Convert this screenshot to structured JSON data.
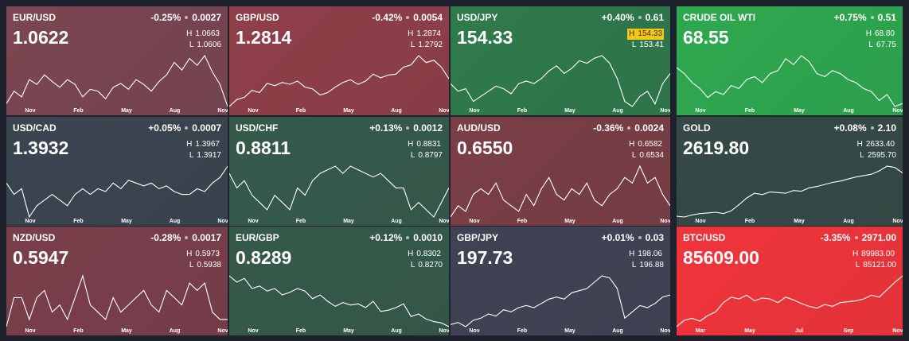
{
  "labels": {
    "high": "H",
    "low": "L"
  },
  "tiles": [
    {
      "symbol": "EUR/USD",
      "change_pct": "-0.25%",
      "change": "0.0027",
      "price": "1.0622",
      "high": "1.0663",
      "low": "1.0606",
      "high_highlight": false,
      "color": "#7a4651",
      "months": [
        "Nov",
        "Feb",
        "May",
        "Aug",
        "Nov"
      ],
      "values": [
        1.065,
        1.078,
        1.072,
        1.09,
        1.085,
        1.095,
        1.088,
        1.082,
        1.09,
        1.085,
        1.072,
        1.08,
        1.078,
        1.07,
        1.082,
        1.086,
        1.08,
        1.09,
        1.085,
        1.078,
        1.088,
        1.095,
        1.108,
        1.1,
        1.112,
        1.105,
        1.115,
        1.098,
        1.085,
        1.062
      ]
    },
    {
      "symbol": "GBP/USD",
      "change_pct": "-0.42%",
      "change": "0.0054",
      "price": "1.2814",
      "high": "1.2874",
      "low": "1.2792",
      "high_highlight": false,
      "color": "#8f3f48",
      "months": [
        "Nov",
        "Feb",
        "May",
        "Aug",
        "Nov"
      ],
      "values": [
        1.22,
        1.235,
        1.24,
        1.255,
        1.25,
        1.27,
        1.265,
        1.272,
        1.268,
        1.275,
        1.262,
        1.258,
        1.245,
        1.25,
        1.262,
        1.272,
        1.278,
        1.268,
        1.275,
        1.29,
        1.282,
        1.288,
        1.29,
        1.305,
        1.31,
        1.33,
        1.315,
        1.32,
        1.305,
        1.28
      ]
    },
    {
      "symbol": "USD/JPY",
      "change_pct": "+0.40%",
      "change": "0.61",
      "price": "154.33",
      "high": "154.33",
      "low": "153.41",
      "high_highlight": true,
      "color": "#2f7a4b",
      "months": [
        "Nov",
        "Feb",
        "May",
        "Aug",
        "Nov"
      ],
      "values": [
        150,
        147,
        148,
        143,
        145,
        147,
        149,
        148,
        146,
        150,
        151,
        150,
        152,
        155,
        157,
        154,
        156,
        159,
        158,
        160,
        161,
        158,
        152,
        143,
        141,
        145,
        147,
        142,
        150,
        154
      ]
    },
    {
      "symbol": "CRUDE OIL WTI",
      "change_pct": "+0.75%",
      "change": "0.51",
      "price": "68.55",
      "high": "68.80",
      "low": "67.75",
      "high_highlight": false,
      "color": "#2ea84f",
      "months": [
        "Nov",
        "Feb",
        "May",
        "Aug",
        "Nov"
      ],
      "values": [
        82,
        80,
        77,
        75,
        72,
        74,
        73,
        76,
        75,
        78,
        79,
        77,
        80,
        81,
        85,
        83,
        86,
        84,
        80,
        79,
        81,
        80,
        78,
        77,
        75,
        74,
        71,
        73,
        69,
        70
      ]
    },
    {
      "symbol": "USD/CAD",
      "change_pct": "+0.05%",
      "change": "0.0007",
      "price": "1.3932",
      "high": "1.3967",
      "low": "1.3917",
      "high_highlight": false,
      "color": "#3a4550",
      "months": [
        "Nov",
        "Feb",
        "May",
        "Aug",
        "Nov"
      ],
      "values": [
        1.37,
        1.35,
        1.36,
        1.31,
        1.33,
        1.34,
        1.35,
        1.34,
        1.33,
        1.35,
        1.36,
        1.35,
        1.36,
        1.355,
        1.37,
        1.36,
        1.375,
        1.37,
        1.365,
        1.37,
        1.36,
        1.365,
        1.355,
        1.35,
        1.35,
        1.36,
        1.355,
        1.37,
        1.38,
        1.4
      ]
    },
    {
      "symbol": "USD/CHF",
      "change_pct": "+0.13%",
      "change": "0.0012",
      "price": "0.8811",
      "high": "0.8831",
      "low": "0.8797",
      "high_highlight": false,
      "color": "#355a4a",
      "months": [
        "Nov",
        "Feb",
        "May",
        "Aug",
        "Nov"
      ],
      "values": [
        0.9,
        0.88,
        0.89,
        0.87,
        0.86,
        0.85,
        0.87,
        0.86,
        0.85,
        0.88,
        0.87,
        0.89,
        0.9,
        0.905,
        0.91,
        0.9,
        0.91,
        0.905,
        0.9,
        0.895,
        0.9,
        0.89,
        0.88,
        0.88,
        0.85,
        0.86,
        0.85,
        0.84,
        0.86,
        0.88
      ]
    },
    {
      "symbol": "AUD/USD",
      "change_pct": "-0.36%",
      "change": "0.0024",
      "price": "0.6550",
      "high": "0.6582",
      "low": "0.6534",
      "high_highlight": false,
      "color": "#7a3e46",
      "months": [
        "Nov",
        "Feb",
        "May",
        "Aug",
        "Nov"
      ],
      "values": [
        0.645,
        0.655,
        0.65,
        0.665,
        0.67,
        0.665,
        0.675,
        0.66,
        0.655,
        0.65,
        0.665,
        0.655,
        0.67,
        0.68,
        0.665,
        0.66,
        0.67,
        0.665,
        0.675,
        0.66,
        0.655,
        0.665,
        0.67,
        0.68,
        0.675,
        0.69,
        0.675,
        0.68,
        0.665,
        0.655
      ]
    },
    {
      "symbol": "GOLD",
      "change_pct": "+0.08%",
      "change": "2.10",
      "price": "2619.80",
      "high": "2633.40",
      "low": "2595.70",
      "high_highlight": false,
      "color": "#354a46",
      "months": [
        "Nov",
        "Feb",
        "May",
        "Aug",
        "Nov"
      ],
      "values": [
        1980,
        1970,
        2000,
        2020,
        2030,
        2040,
        2020,
        2060,
        2150,
        2250,
        2320,
        2300,
        2340,
        2330,
        2320,
        2360,
        2350,
        2400,
        2420,
        2450,
        2480,
        2500,
        2530,
        2560,
        2580,
        2600,
        2650,
        2720,
        2700,
        2620
      ]
    },
    {
      "symbol": "NZD/USD",
      "change_pct": "-0.28%",
      "change": "0.0017",
      "price": "0.5947",
      "high": "0.5973",
      "low": "0.5938",
      "high_highlight": false,
      "color": "#7a3e4b",
      "months": [
        "Nov",
        "Feb",
        "May",
        "Aug",
        "Nov"
      ],
      "values": [
        0.59,
        0.61,
        0.61,
        0.595,
        0.61,
        0.615,
        0.6,
        0.605,
        0.595,
        0.61,
        0.625,
        0.605,
        0.6,
        0.595,
        0.61,
        0.6,
        0.605,
        0.61,
        0.615,
        0.605,
        0.6,
        0.615,
        0.61,
        0.605,
        0.62,
        0.615,
        0.62,
        0.6,
        0.595,
        0.595
      ]
    },
    {
      "symbol": "EUR/GBP",
      "change_pct": "+0.12%",
      "change": "0.0010",
      "price": "0.8289",
      "high": "0.8302",
      "low": "0.8270",
      "high_highlight": false,
      "color": "#355a49",
      "months": [
        "Nov",
        "Feb",
        "May",
        "Aug",
        "Nov"
      ],
      "values": [
        0.87,
        0.865,
        0.868,
        0.86,
        0.862,
        0.858,
        0.86,
        0.855,
        0.857,
        0.86,
        0.858,
        0.852,
        0.855,
        0.85,
        0.846,
        0.849,
        0.847,
        0.848,
        0.845,
        0.85,
        0.842,
        0.843,
        0.845,
        0.848,
        0.838,
        0.84,
        0.836,
        0.834,
        0.833,
        0.83
      ]
    },
    {
      "symbol": "GBP/JPY",
      "change_pct": "+0.01%",
      "change": "0.03",
      "price": "197.73",
      "high": "198.06",
      "low": "196.88",
      "high_highlight": false,
      "color": "#3f4353",
      "months": [
        "Nov",
        "Feb",
        "May",
        "Aug",
        "Nov"
      ],
      "values": [
        183,
        184,
        182,
        185,
        186,
        188,
        187,
        190,
        189,
        191,
        192,
        191,
        193,
        195,
        196,
        195,
        198,
        199,
        200,
        203,
        206,
        205,
        200,
        186,
        189,
        192,
        191,
        193,
        196,
        197
      ]
    },
    {
      "symbol": "BTC/USD",
      "change_pct": "-3.35%",
      "change": "2971.00",
      "price": "85609.00",
      "high": "89983.00",
      "low": "85121.00",
      "high_highlight": false,
      "color": "#f0343a",
      "months": [
        "Mar",
        "May",
        "Jul",
        "Sep",
        "Nov"
      ],
      "values": [
        36000,
        43000,
        45000,
        42000,
        48000,
        52000,
        62000,
        68000,
        66000,
        70000,
        64000,
        67000,
        66000,
        62000,
        68000,
        65000,
        61000,
        58000,
        56000,
        60000,
        58000,
        62000,
        63000,
        64000,
        66000,
        70000,
        68000,
        76000,
        84000,
        91000
      ]
    }
  ]
}
